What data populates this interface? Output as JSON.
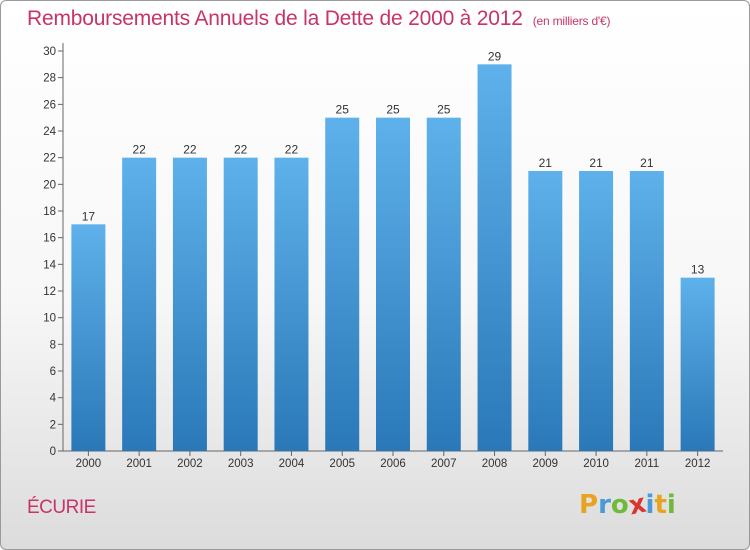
{
  "title": "Remboursements Annuels de la Dette de 2000 à 2012",
  "subtitle": "(en milliers d'€)",
  "commune": "ÉCURIE",
  "logo": {
    "text": "Proxiti",
    "letters": [
      {
        "ch": "P",
        "color": "#e8a321"
      },
      {
        "ch": "r",
        "color": "#4a9ad8"
      },
      {
        "ch": "o",
        "color": "#6fba3b"
      },
      {
        "ch": "x",
        "color": "#d8362f"
      },
      {
        "ch": "i",
        "color": "#4a9ad8"
      },
      {
        "ch": "t",
        "color": "#e8a321"
      },
      {
        "ch": "i",
        "color": "#6fba3b"
      }
    ]
  },
  "colors": {
    "accent": "#c8336a",
    "bar_top": "#5eb1ea",
    "bar_bottom": "#2a78b8"
  },
  "chart_data": {
    "type": "bar",
    "title": "Remboursements Annuels de la Dette de 2000 à 2012",
    "subtitle": "(en milliers d'€)",
    "categories": [
      "2000",
      "2001",
      "2002",
      "2003",
      "2004",
      "2005",
      "2006",
      "2007",
      "2008",
      "2009",
      "2010",
      "2011",
      "2012"
    ],
    "values": [
      17,
      22,
      22,
      22,
      22,
      25,
      25,
      25,
      29,
      21,
      21,
      21,
      13
    ],
    "ylim": [
      0,
      30
    ],
    "yticks": [
      0,
      2,
      4,
      6,
      8,
      10,
      12,
      14,
      16,
      18,
      20,
      22,
      24,
      26,
      28,
      30
    ],
    "grid": false,
    "legend": "none",
    "data_labels": true
  }
}
